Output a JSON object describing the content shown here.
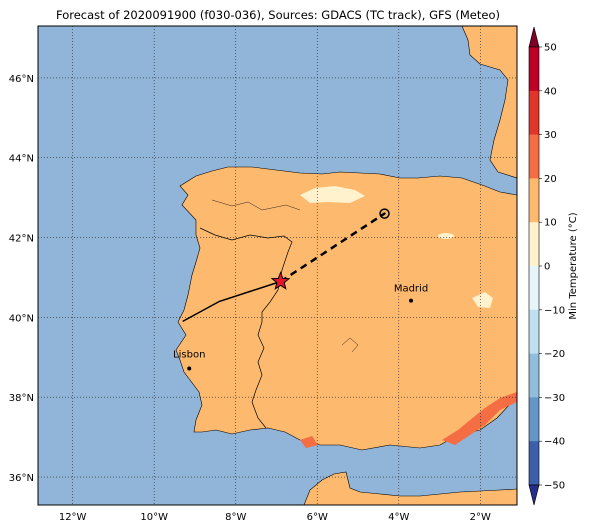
{
  "title": "Forecast of 2020091900 (f030-036), Sources: GDACS (TC track), GFS (Meteo)",
  "map": {
    "lon_range": [
      -12.85,
      -1.1
    ],
    "lat_range": [
      35.3,
      47.3
    ],
    "x_ticks": [
      {
        "lon": -12,
        "label": "12°W"
      },
      {
        "lon": -10,
        "label": "10°W"
      },
      {
        "lon": -8,
        "label": "8°W"
      },
      {
        "lon": -6,
        "label": "6°W"
      },
      {
        "lon": -4,
        "label": "4°W"
      },
      {
        "lon": -2,
        "label": "2°W"
      }
    ],
    "y_ticks": [
      {
        "lat": 36,
        "label": "36°N"
      },
      {
        "lat": 38,
        "label": "38°N"
      },
      {
        "lat": 40,
        "label": "40°N"
      },
      {
        "lat": 42,
        "label": "42°N"
      },
      {
        "lat": 44,
        "label": "44°N"
      },
      {
        "lat": 46,
        "label": "46°N"
      }
    ],
    "ocean_color": "#91b4d9",
    "land_color": "#fdb96e",
    "grid": "dotted"
  },
  "cities": [
    {
      "name": "Madrid",
      "lon": -3.7,
      "lat": 40.42
    },
    {
      "name": "Lisbon",
      "lon": -9.14,
      "lat": 38.72
    }
  ],
  "track": {
    "observed": [
      [
        -9.3,
        39.9
      ],
      [
        -8.4,
        40.4
      ],
      [
        -6.9,
        40.9
      ]
    ],
    "forecast": [
      [
        -6.9,
        40.9
      ],
      [
        -4.35,
        42.6
      ]
    ],
    "current_position": [
      -6.9,
      40.9
    ],
    "forecast_end": [
      -4.35,
      42.6
    ]
  },
  "colorbar": {
    "label": "Min Temperature (°C)",
    "ticks": [
      "50",
      "40",
      "30",
      "20",
      "10",
      "0",
      "−10",
      "−20",
      "−30",
      "−40",
      "−50"
    ],
    "colors": [
      "#800026",
      "#bd0026",
      "#e0352b",
      "#f46d43",
      "#fdb96e",
      "#fff2cc",
      "#e6f5fa",
      "#bfe0ef",
      "#91bfdb",
      "#6497c8",
      "#3b5faa",
      "#262e8c"
    ]
  }
}
